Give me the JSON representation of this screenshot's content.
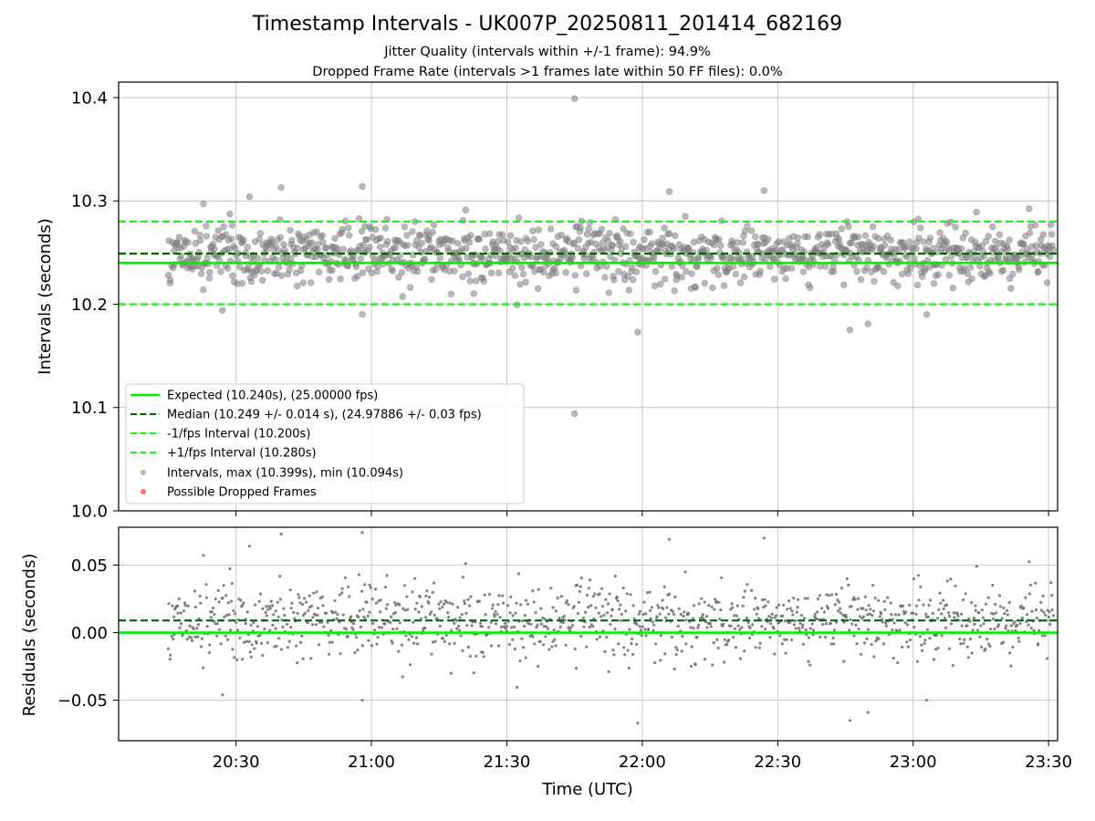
{
  "figure": {
    "title": "Timestamp Intervals - UK007P_20250811_201414_682169",
    "subtitle_1": "Jitter Quality (intervals within +/-1 frame): 94.9%",
    "subtitle_2": "Dropped Frame Rate (intervals >1 frames late within 50 FF files): 0.0%",
    "xlabel": "Time (UTC)"
  },
  "colors": {
    "expected": "#00ee00",
    "median": "#006400",
    "fps_bounds": "#22ee22",
    "points": "#808080",
    "dropped": "#ff4444",
    "grid": "#b0b0b0"
  },
  "chart_data": [
    {
      "type": "scatter",
      "name": "intervals",
      "ylabel": "Intervals (seconds)",
      "xlim_minutes": [
        1204,
        1412
      ],
      "ylim": [
        10.0,
        10.415
      ],
      "yticks": [
        10.0,
        10.1,
        10.2,
        10.3,
        10.4
      ],
      "ytick_labels": [
        "10.0",
        "10.1",
        "10.2",
        "10.3",
        "10.4"
      ],
      "grid": true,
      "legend_position": "lower-left",
      "hlines": [
        {
          "key": "expected",
          "y": 10.24,
          "style": "solid",
          "label": "Expected (10.240s), (25.00000 fps)"
        },
        {
          "key": "median",
          "y": 10.249,
          "style": "dashed",
          "label": "Median (10.249 +/- 0.014 s), (24.97886 +/- 0.03 fps)"
        },
        {
          "key": "minus_fps",
          "y": 10.2,
          "style": "dashed",
          "label": "-1/fps Interval (10.200s)"
        },
        {
          "key": "plus_fps",
          "y": 10.28,
          "style": "dashed",
          "label": "+1/fps Interval (10.280s)"
        }
      ],
      "series": [
        {
          "name": "Intervals, max (10.399s), min (10.094s)",
          "marker": "circle"
        },
        {
          "name": "Possible Dropped Frames",
          "marker": "circle",
          "values": []
        }
      ],
      "time_range": [
        "20:15",
        "23:31"
      ],
      "point_count": 1150,
      "max": 10.399,
      "min": 10.094,
      "median": 10.249,
      "std": 0.014,
      "outliers": [
        {
          "x": "21:45",
          "y": 10.399
        },
        {
          "x": "21:45",
          "y": 10.094
        },
        {
          "x": "21:59",
          "y": 10.173
        },
        {
          "x": "22:50",
          "y": 10.181
        },
        {
          "x": "20:27",
          "y": 10.194
        },
        {
          "x": "20:58",
          "y": 10.19
        },
        {
          "x": "22:46",
          "y": 10.175
        },
        {
          "x": "23:03",
          "y": 10.19
        },
        {
          "x": "22:27",
          "y": 10.31
        },
        {
          "x": "20:40",
          "y": 10.313
        },
        {
          "x": "20:58",
          "y": 10.314
        },
        {
          "x": "20:33",
          "y": 10.304
        },
        {
          "x": "22:06",
          "y": 10.309
        }
      ]
    },
    {
      "type": "scatter",
      "name": "residuals",
      "ylabel": "Residuals (seconds)",
      "xlim_minutes": [
        1204,
        1412
      ],
      "ylim": [
        -0.08,
        0.078
      ],
      "yticks": [
        -0.05,
        0.0,
        0.05
      ],
      "ytick_labels": [
        "−0.05",
        "0.00",
        "0.05"
      ],
      "xticks": [
        "20:30",
        "21:00",
        "21:30",
        "22:00",
        "22:30",
        "23:00",
        "23:30"
      ],
      "xtick_minutes": [
        1230,
        1260,
        1290,
        1320,
        1350,
        1380,
        1410
      ],
      "grid": true,
      "hlines": [
        {
          "key": "expected",
          "y": 0.0,
          "style": "solid"
        },
        {
          "key": "median",
          "y": 0.009,
          "style": "dashed"
        }
      ],
      "max": 0.076,
      "min": -0.068
    }
  ]
}
